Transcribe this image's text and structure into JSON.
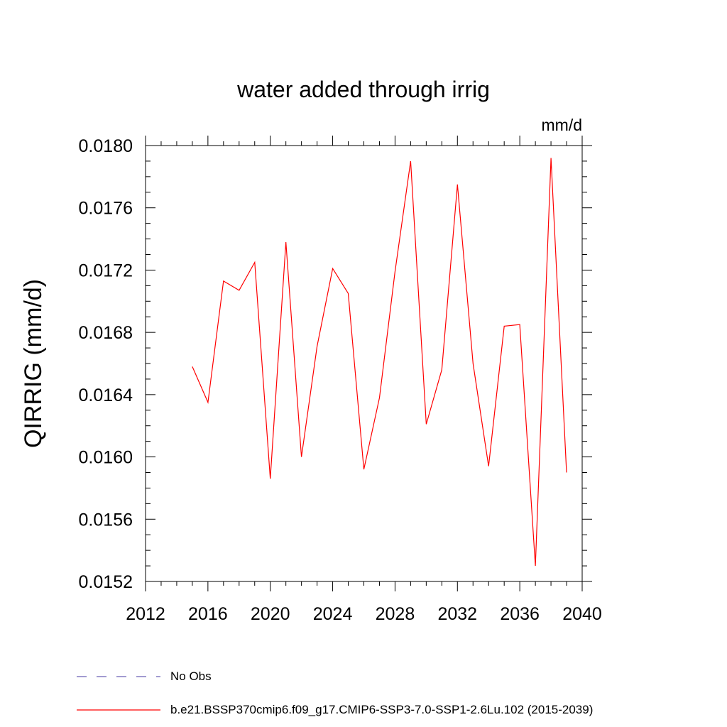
{
  "chart_data": {
    "type": "line",
    "title": "water added through irrig",
    "units_label": "mm/d",
    "ylabel": "QIRRIG  (mm/d)",
    "xlabel": "",
    "xlim": [
      2012,
      2040
    ],
    "ylim": [
      0.0152,
      0.018
    ],
    "x_ticks": [
      "2012",
      "2016",
      "2020",
      "2024",
      "2028",
      "2032",
      "2036",
      "2040"
    ],
    "y_ticks": [
      "0.0152",
      "0.0156",
      "0.0160",
      "0.0164",
      "0.0168",
      "0.0172",
      "0.0176",
      "0.0180"
    ],
    "grid": false,
    "legend_position": "bottom",
    "series": [
      {
        "name": "No Obs",
        "color": "#6b5fb5",
        "dash": "dashed",
        "x": [],
        "y": []
      },
      {
        "name": "b.e21.BSSP370cmip6.f09_g17.CMIP6-SSP3-7.0-SSP1-2.6Lu.102 (2015-2039)",
        "color": "#ff0000",
        "dash": "solid",
        "x": [
          2015,
          2016,
          2017,
          2018,
          2019,
          2020,
          2021,
          2022,
          2023,
          2024,
          2025,
          2026,
          2027,
          2028,
          2029,
          2030,
          2031,
          2032,
          2033,
          2034,
          2035,
          2036,
          2037,
          2038,
          2039
        ],
        "y": [
          0.01658,
          0.01635,
          0.01713,
          0.01707,
          0.01725,
          0.01586,
          0.01738,
          0.016,
          0.01671,
          0.01721,
          0.01705,
          0.01592,
          0.01638,
          0.01719,
          0.0179,
          0.01621,
          0.01656,
          0.01775,
          0.0166,
          0.01594,
          0.01684,
          0.01685,
          0.0153,
          0.01792,
          0.0159
        ]
      }
    ]
  }
}
